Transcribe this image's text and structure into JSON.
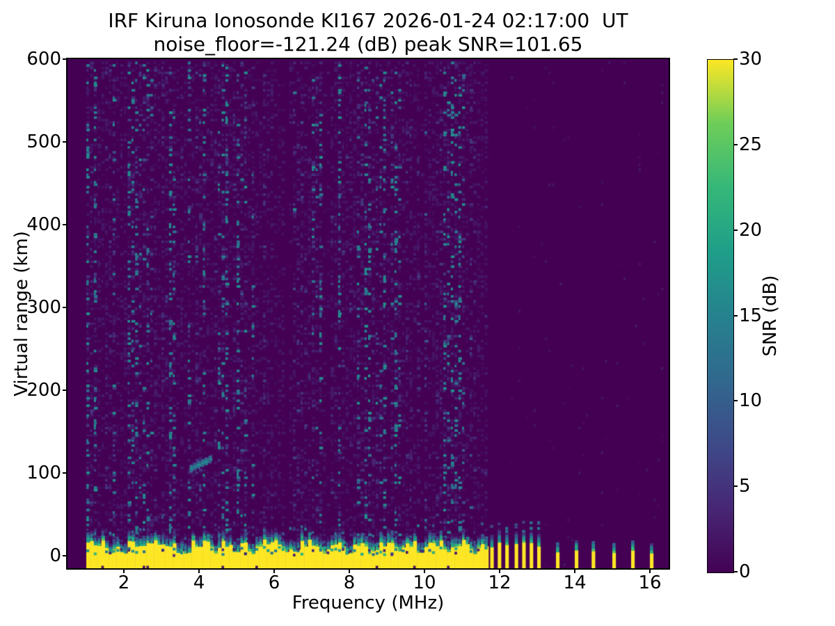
{
  "figure": {
    "background_color": "#ffffff",
    "kind": "matplotlib-style ionogram figure"
  },
  "chart_data": {
    "type": "heatmap",
    "title": "IRF Kiruna Ionosonde KI167 2026-01-24 02:17:00  UT",
    "subtitle": "noise_floor=-121.24 (dB) peak SNR=101.65",
    "xlabel": "Frequency (MHz)",
    "ylabel": "Virtual range (km)",
    "xlim": [
      0.5,
      16.5
    ],
    "ylim": [
      -15,
      600
    ],
    "x_ticks": [
      2,
      4,
      6,
      8,
      10,
      12,
      14,
      16
    ],
    "y_ticks": [
      0,
      100,
      200,
      300,
      400,
      500,
      600
    ],
    "grid": false,
    "colorbar": {
      "label": "SNR (dB)",
      "ticks": [
        0,
        5,
        10,
        15,
        20,
        25,
        30
      ],
      "min": 0,
      "max": 30,
      "colormap": "viridis",
      "colormap_stops": [
        "#440154",
        "#472775",
        "#3e4a89",
        "#31688e",
        "#26828e",
        "#1f9e89",
        "#35b779",
        "#6dcd59",
        "#fde725"
      ]
    },
    "noise_floor_db": -121.24,
    "peak_snr_db": 101.65,
    "data_start_mhz": 1.0,
    "sweep_end_mhz": 11.6,
    "freq_step_mhz": 0.1,
    "range_bin_km": 3,
    "stepped_freqs_mhz": [
      11.75,
      11.95,
      12.15,
      12.4,
      12.6,
      12.8,
      13.0,
      13.5,
      14.0,
      14.45,
      15.0,
      15.5,
      16.0
    ],
    "noise_only_column_mhz": 16.42,
    "enhanced_noise_columns_mhz": [
      6.3,
      7.35,
      9.9
    ],
    "saturation_band": {
      "description": "strong ground/near-range return saturating at colorbar max",
      "range_km": [
        -15,
        16
      ],
      "top_km_min": 11,
      "top_km_max": 20,
      "fringe_extent_km": 25,
      "snr_db": 30
    },
    "band_notches_mhz": [
      1.6,
      1.95,
      3.45,
      3.65,
      4.4,
      4.95,
      5.35,
      6.3,
      6.5,
      7.3,
      7.95,
      8.6,
      9.3,
      9.85,
      10.6,
      11.3
    ],
    "echo_trace": {
      "description": "ionospheric echo",
      "freq_mhz": [
        3.75,
        4.25
      ],
      "range_km": [
        103,
        122
      ],
      "snr_db_peak": 17
    },
    "background_noise": {
      "typical_db": 0,
      "speckle_db_max": 17
    }
  }
}
